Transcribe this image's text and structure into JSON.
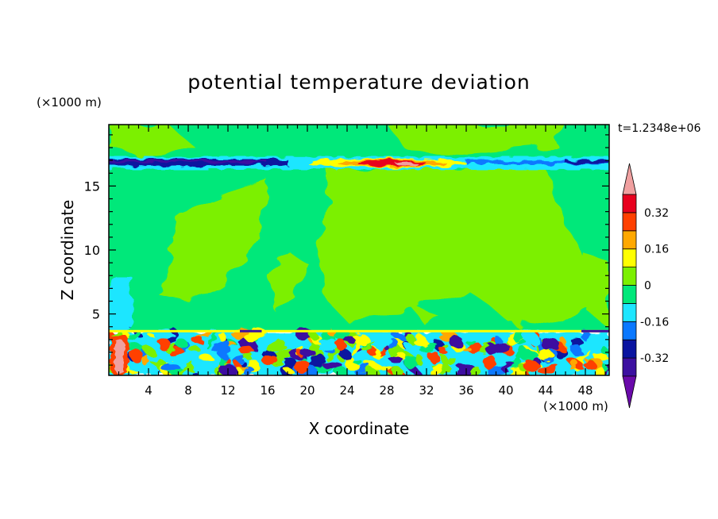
{
  "chart_data": {
    "type": "heatmap",
    "title": "potential temperature deviation",
    "xlabel": "X coordinate",
    "ylabel": "Z coordinate",
    "x_unit": "(×1000 m)",
    "y_unit": "(×1000 m)",
    "time_label": "t=1.2348e+06",
    "xlim": [
      0,
      50.4
    ],
    "ylim": [
      0.2,
      19.8
    ],
    "x_ticks": [
      4,
      8,
      12,
      16,
      20,
      24,
      28,
      32,
      36,
      40,
      44,
      48
    ],
    "y_ticks": [
      5,
      10,
      15
    ],
    "colorbar": {
      "levels": [
        -0.4,
        -0.32,
        -0.24,
        -0.16,
        -0.08,
        0,
        0.08,
        0.16,
        0.24,
        0.32,
        0.4
      ],
      "tick_labels": [
        "0.32",
        "0.16",
        "0",
        "-0.16",
        "-0.32"
      ],
      "tick_values": [
        0.32,
        0.16,
        0,
        -0.16,
        -0.32
      ],
      "colors": [
        "#6a0aaa",
        "#3c10a0",
        "#0a14a0",
        "#0a78ff",
        "#1ee6ff",
        "#00e87a",
        "#7cf000",
        "#ffff00",
        "#ffa800",
        "#ff4000",
        "#e8001e",
        "#f0a0a0"
      ],
      "extend": "both"
    },
    "layers": [
      {
        "z_range": [
          3.6,
          16.5
        ],
        "field": "mostly -0.08 to 0.08 (green / yellow-green)"
      },
      {
        "z_range": [
          16.5,
          17.2
        ],
        "field": "strong band: -0.4 to 0.4 (blue at edges, red near x=22-34)"
      },
      {
        "z_range": [
          0.2,
          3.6
        ],
        "field": "turbulent mixed layer: -0.4 to 0.4"
      }
    ]
  },
  "colors": {
    "background": "#ffffff",
    "axis": "#000000"
  }
}
